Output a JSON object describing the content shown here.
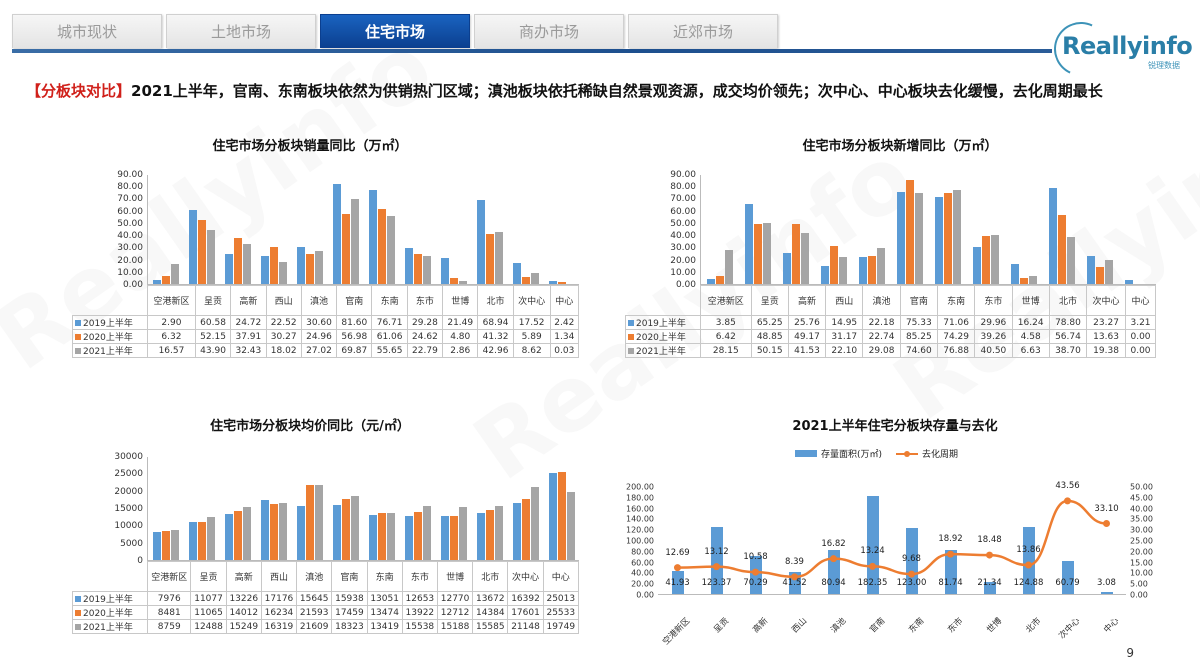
{
  "tabs": [
    {
      "label": "城市现状",
      "active": false
    },
    {
      "label": "土地市场",
      "active": false
    },
    {
      "label": "住宅市场",
      "active": true
    },
    {
      "label": "商办市场",
      "active": false
    },
    {
      "label": "近郊市场",
      "active": false
    }
  ],
  "logo": {
    "text": "Reallyinfo",
    "sub": "锐理数据"
  },
  "headline": {
    "tag": "【分板块对比】",
    "text": "2021上半年，官南、东南板块依然为供销热门区域；滇池板块依托稀缺自然景观资源，成交均价领先；次中心、中心板块去化缓慢，去化周期最长"
  },
  "colors": {
    "y2019": "#5b9bd5",
    "y2020": "#ed7d31",
    "y2021": "#a5a5a5",
    "line": "#ed7d31",
    "tab_active": "#0b3f8f",
    "tag": "#d0201a"
  },
  "page_number": "9",
  "chart_data": [
    {
      "type": "bar",
      "title": "住宅市场分板块销量同比（万㎡）",
      "ylim": [
        0,
        90
      ],
      "yticks": [
        "90.00",
        "80.00",
        "70.00",
        "60.00",
        "50.00",
        "40.00",
        "30.00",
        "20.00",
        "10.00",
        "0.00"
      ],
      "categories": [
        "空港新区",
        "呈贡",
        "高新",
        "西山",
        "滇池",
        "官南",
        "东南",
        "东市",
        "世博",
        "北市",
        "次中心",
        "中心"
      ],
      "series": [
        {
          "name": "2019上半年",
          "values": [
            "2.90",
            "60.58",
            "24.72",
            "22.52",
            "30.60",
            "81.60",
            "76.71",
            "29.28",
            "21.49",
            "68.94",
            "17.52",
            "2.42"
          ]
        },
        {
          "name": "2020上半年",
          "values": [
            "6.32",
            "52.15",
            "37.91",
            "30.27",
            "24.96",
            "56.98",
            "61.06",
            "24.62",
            "4.80",
            "41.32",
            "5.89",
            "1.34"
          ]
        },
        {
          "name": "2021上半年",
          "values": [
            "16.57",
            "43.90",
            "32.43",
            "18.02",
            "27.02",
            "69.87",
            "55.65",
            "22.79",
            "2.86",
            "42.96",
            "8.62",
            "0.03"
          ]
        }
      ]
    },
    {
      "type": "bar",
      "title": "住宅市场分板块新增同比（万㎡）",
      "ylim": [
        0,
        90
      ],
      "yticks": [
        "90.00",
        "80.00",
        "70.00",
        "60.00",
        "50.00",
        "40.00",
        "30.00",
        "20.00",
        "10.00",
        "0.00"
      ],
      "categories": [
        "空港新区",
        "呈贡",
        "高新",
        "西山",
        "滇池",
        "官南",
        "东南",
        "东市",
        "世博",
        "北市",
        "次中心",
        "中心"
      ],
      "series": [
        {
          "name": "2019上半年",
          "values": [
            "3.85",
            "65.25",
            "25.76",
            "14.95",
            "22.18",
            "75.33",
            "71.06",
            "29.96",
            "16.24",
            "78.80",
            "23.27",
            "3.21"
          ]
        },
        {
          "name": "2020上半年",
          "values": [
            "6.42",
            "48.85",
            "49.17",
            "31.17",
            "22.74",
            "85.25",
            "74.29",
            "39.26",
            "4.58",
            "56.74",
            "13.63",
            "0.00"
          ]
        },
        {
          "name": "2021上半年",
          "values": [
            "28.15",
            "50.15",
            "41.53",
            "22.10",
            "29.08",
            "74.60",
            "76.88",
            "40.50",
            "6.63",
            "38.70",
            "19.38",
            "0.00"
          ]
        }
      ]
    },
    {
      "type": "bar",
      "title": "住宅市场分板块均价同比（元/㎡）",
      "ylim": [
        0,
        30000
      ],
      "yticks": [
        "30000",
        "25000",
        "20000",
        "15000",
        "10000",
        "5000",
        "0"
      ],
      "categories": [
        "空港新区",
        "呈贡",
        "高新",
        "西山",
        "滇池",
        "官南",
        "东南",
        "东市",
        "世博",
        "北市",
        "次中心",
        "中心"
      ],
      "series": [
        {
          "name": "2019上半年",
          "values": [
            "7976",
            "11077",
            "13226",
            "17176",
            "15645",
            "15938",
            "13051",
            "12653",
            "12770",
            "13672",
            "16392",
            "25013"
          ]
        },
        {
          "name": "2020上半年",
          "values": [
            "8481",
            "11065",
            "14012",
            "16234",
            "21593",
            "17459",
            "13474",
            "13922",
            "12712",
            "14384",
            "17601",
            "25533"
          ]
        },
        {
          "name": "2021上半年",
          "values": [
            "8759",
            "12488",
            "15249",
            "16319",
            "21609",
            "18323",
            "13419",
            "15538",
            "15188",
            "15585",
            "21148",
            "19749"
          ]
        }
      ]
    },
    {
      "type": "bar+line",
      "title": "2021上半年住宅分板块存量与去化",
      "legend": [
        "存量面积(万㎡)",
        "去化周期"
      ],
      "ylim_left": [
        0,
        200
      ],
      "yticks_left": [
        "200.00",
        "180.00",
        "160.00",
        "140.00",
        "120.00",
        "100.00",
        "80.00",
        "60.00",
        "40.00",
        "20.00",
        "0.00"
      ],
      "ylim_right": [
        0,
        50
      ],
      "yticks_right": [
        "50.00",
        "45.00",
        "40.00",
        "35.00",
        "30.00",
        "25.00",
        "20.00",
        "15.00",
        "10.00",
        "5.00",
        "0.00"
      ],
      "categories": [
        "空港新区",
        "呈贡",
        "高新",
        "西山",
        "滇池",
        "官南",
        "东南",
        "东市",
        "世博",
        "北市",
        "次中心",
        "中心"
      ],
      "series": [
        {
          "name": "存量面积(万㎡)",
          "type": "bar",
          "axis": "left",
          "values": [
            "41.93",
            "123.37",
            "70.29",
            "41.52",
            "80.94",
            "182.35",
            "123.00",
            "81.74",
            "21.34",
            "124.88",
            "60.79",
            "3.08"
          ]
        },
        {
          "name": "去化周期",
          "type": "line",
          "axis": "right",
          "values": [
            "12.69",
            "13.12",
            "10.58",
            "8.39",
            "16.82",
            "13.24",
            "9.68",
            "18.92",
            "18.48",
            "13.86",
            "43.56",
            "33.10"
          ]
        }
      ]
    }
  ]
}
